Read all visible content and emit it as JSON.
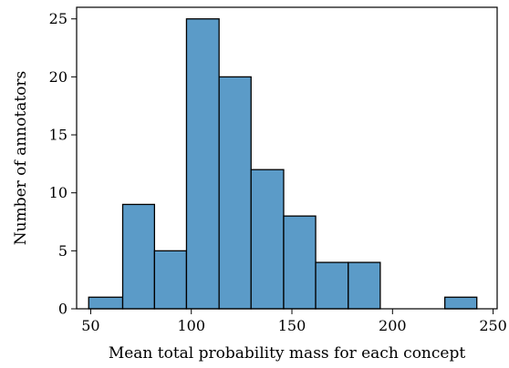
{
  "chart_data": {
    "type": "histogram",
    "title": "",
    "xlabel": "Mean total probability mass for each concept",
    "ylabel": "Number of annotators",
    "xlim": [
      43,
      252
    ],
    "ylim": [
      0,
      26
    ],
    "xticks": [
      50,
      100,
      150,
      200,
      250
    ],
    "yticks": [
      0,
      5,
      10,
      15,
      20,
      25
    ],
    "bar_color": "#5b9bc8",
    "edge_color": "#000000",
    "grid": false,
    "bins": [
      {
        "start": 49.0,
        "end": 65.9,
        "count": 1
      },
      {
        "start": 65.9,
        "end": 81.7,
        "count": 9
      },
      {
        "start": 81.7,
        "end": 97.6,
        "count": 5
      },
      {
        "start": 97.6,
        "end": 113.8,
        "count": 25
      },
      {
        "start": 113.8,
        "end": 129.7,
        "count": 20
      },
      {
        "start": 129.7,
        "end": 145.9,
        "count": 12
      },
      {
        "start": 145.9,
        "end": 161.8,
        "count": 8
      },
      {
        "start": 161.8,
        "end": 178.0,
        "count": 4
      },
      {
        "start": 178.0,
        "end": 193.9,
        "count": 4
      },
      {
        "start": 193.9,
        "end": 210.1,
        "count": 0
      },
      {
        "start": 210.1,
        "end": 226.0,
        "count": 0
      },
      {
        "start": 226.0,
        "end": 241.9,
        "count": 1
      }
    ]
  }
}
